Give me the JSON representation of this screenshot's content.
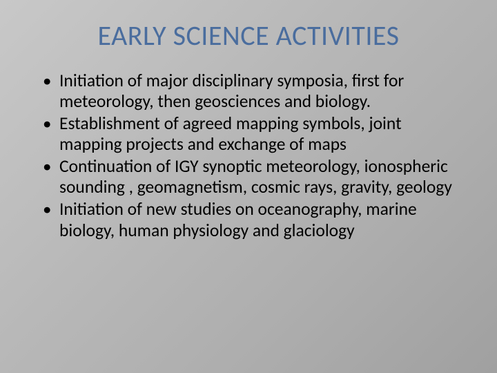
{
  "slide": {
    "title": "EARLY SCIENCE ACTIVITIES",
    "title_color": "#4a6d9e",
    "title_fontsize": 40,
    "background_gradient": [
      "#c8c8c8",
      "#a0a0a0"
    ],
    "body_fontsize": 25.5,
    "body_color": "#000000",
    "bullets": [
      "Initiation of major disciplinary symposia, first for meteorology, then geosciences and biology.",
      "Establishment of agreed mapping symbols, joint mapping projects and exchange of maps",
      "Continuation of IGY synoptic  meteorology,  ionospheric  sounding , geomagnetism, cosmic rays, gravity, geology",
      "Initiation of new studies on oceanography, marine biology, human physiology and glaciology"
    ]
  }
}
